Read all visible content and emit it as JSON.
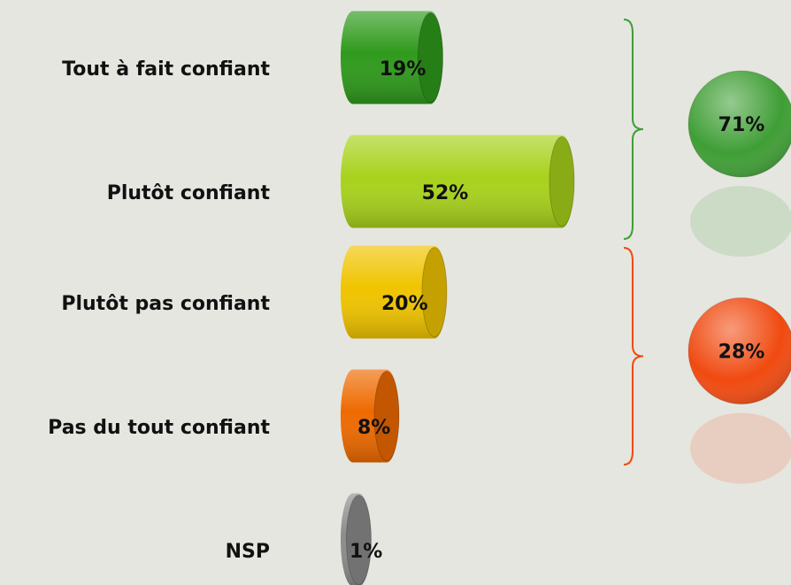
{
  "chart_data": {
    "type": "bar",
    "categories": [
      "Tout à fait confiant",
      "Plutôt confiant",
      "Plutôt pas confiant",
      "Pas du tout confiant",
      "NSP"
    ],
    "values": [
      19,
      52,
      20,
      8,
      1
    ],
    "value_labels": [
      "19%",
      "52%",
      "20%",
      "8%",
      "1%"
    ],
    "colors": [
      "#2f9a1c",
      "#a8d21c",
      "#f0c400",
      "#ee6a00",
      "#8c8c8c"
    ],
    "groups": [
      {
        "value": 71,
        "label": "71%",
        "color": "#3f9e35"
      },
      {
        "value": 28,
        "label": "28%",
        "color": "#f04a10"
      }
    ]
  }
}
